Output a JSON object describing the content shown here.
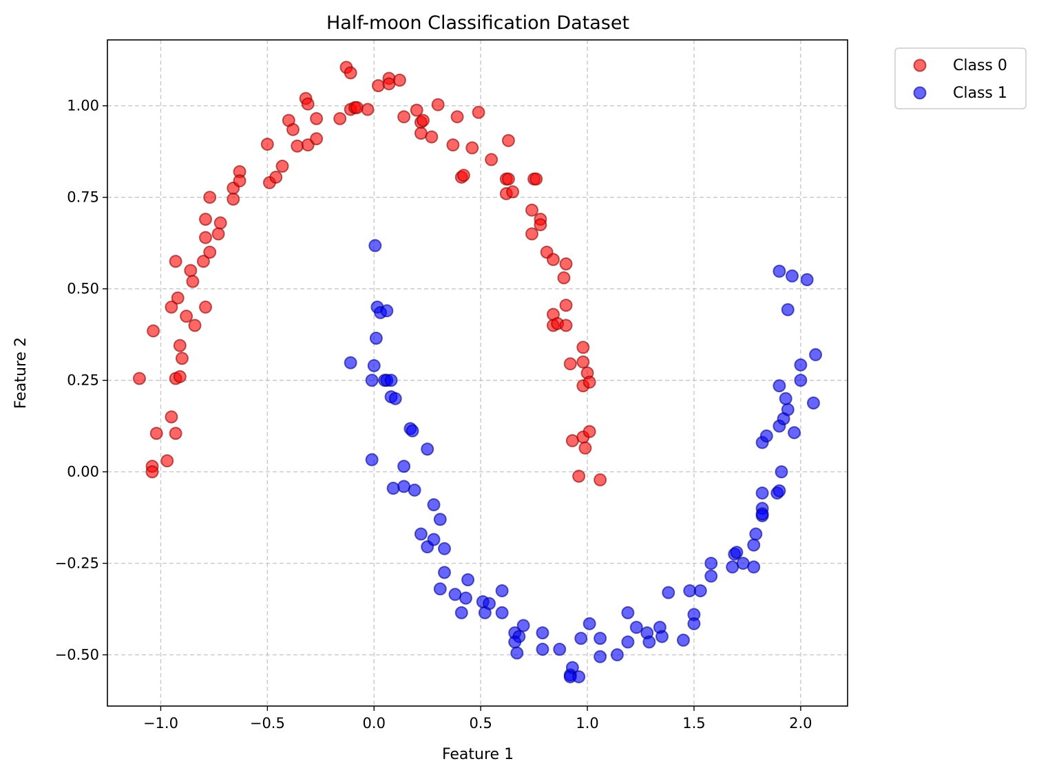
{
  "chart_data": {
    "type": "scatter",
    "title": "Half-moon Classification Dataset",
    "xlabel": "Feature 1",
    "ylabel": "Feature 2",
    "xlim": [
      -1.25,
      2.22
    ],
    "ylim": [
      -0.64,
      1.18
    ],
    "xticks": [
      -1.0,
      -0.5,
      0.0,
      0.5,
      1.0,
      1.5,
      2.0
    ],
    "xtick_labels": [
      "−1.0",
      "−0.5",
      "0.0",
      "0.5",
      "1.0",
      "1.5",
      "2.0"
    ],
    "yticks": [
      1.0,
      0.75,
      0.5,
      0.25,
      0.0,
      -0.25,
      -0.5
    ],
    "ytick_labels": [
      "1.00",
      "0.75",
      "0.50",
      "0.25",
      "0.00",
      "−0.25",
      "−0.50"
    ],
    "grid": true,
    "legend_position": "outside-top-right",
    "series": [
      {
        "name": "Class 0",
        "color": "#ff0000",
        "edge_color": "#8b0000",
        "points": [
          [
            -1.1,
            0.255
          ],
          [
            -1.04,
            0.015
          ],
          [
            -1.04,
            0.0
          ],
          [
            -1.035,
            0.385
          ],
          [
            -1.02,
            0.105
          ],
          [
            -0.97,
            0.03
          ],
          [
            -0.95,
            0.15
          ],
          [
            -0.95,
            0.45
          ],
          [
            -0.93,
            0.105
          ],
          [
            -0.93,
            0.575
          ],
          [
            -0.93,
            0.255
          ],
          [
            -0.92,
            0.475
          ],
          [
            -0.91,
            0.26
          ],
          [
            -0.91,
            0.345
          ],
          [
            -0.9,
            0.31
          ],
          [
            -0.88,
            0.425
          ],
          [
            -0.86,
            0.55
          ],
          [
            -0.85,
            0.52
          ],
          [
            -0.84,
            0.4
          ],
          [
            -0.8,
            0.575
          ],
          [
            -0.79,
            0.69
          ],
          [
            -0.79,
            0.64
          ],
          [
            -0.79,
            0.45
          ],
          [
            -0.77,
            0.6
          ],
          [
            -0.77,
            0.75
          ],
          [
            -0.73,
            0.65
          ],
          [
            -0.72,
            0.68
          ],
          [
            -0.66,
            0.775
          ],
          [
            -0.66,
            0.745
          ],
          [
            -0.63,
            0.82
          ],
          [
            -0.63,
            0.795
          ],
          [
            -0.5,
            0.895
          ],
          [
            -0.49,
            0.79
          ],
          [
            -0.46,
            0.805
          ],
          [
            -0.43,
            0.835
          ],
          [
            -0.4,
            0.96
          ],
          [
            -0.38,
            0.935
          ],
          [
            -0.36,
            0.89
          ],
          [
            -0.32,
            1.02
          ],
          [
            -0.31,
            0.893
          ],
          [
            -0.31,
            1.005
          ],
          [
            -0.27,
            0.965
          ],
          [
            -0.27,
            0.91
          ],
          [
            -0.16,
            0.965
          ],
          [
            -0.13,
            1.105
          ],
          [
            -0.11,
            1.09
          ],
          [
            -0.11,
            0.99
          ],
          [
            -0.09,
            0.995
          ],
          [
            -0.08,
            0.995
          ],
          [
            -0.03,
            0.99
          ],
          [
            0.02,
            1.055
          ],
          [
            0.07,
            1.075
          ],
          [
            0.07,
            1.06
          ],
          [
            0.12,
            1.07
          ],
          [
            0.14,
            0.97
          ],
          [
            0.2,
            0.988
          ],
          [
            0.22,
            0.955
          ],
          [
            0.22,
            0.925
          ],
          [
            0.23,
            0.96
          ],
          [
            0.27,
            0.915
          ],
          [
            0.3,
            1.003
          ],
          [
            0.37,
            0.893
          ],
          [
            0.39,
            0.97
          ],
          [
            0.41,
            0.805
          ],
          [
            0.42,
            0.81
          ],
          [
            0.46,
            0.885
          ],
          [
            0.49,
            0.982
          ],
          [
            0.55,
            0.853
          ],
          [
            0.62,
            0.8
          ],
          [
            0.62,
            0.76
          ],
          [
            0.63,
            0.8
          ],
          [
            0.63,
            0.905
          ],
          [
            0.65,
            0.765
          ],
          [
            0.75,
            0.8
          ],
          [
            0.76,
            0.8
          ],
          [
            0.74,
            0.715
          ],
          [
            0.74,
            0.65
          ],
          [
            0.78,
            0.69
          ],
          [
            0.78,
            0.675
          ],
          [
            0.81,
            0.6
          ],
          [
            0.84,
            0.58
          ],
          [
            0.84,
            0.43
          ],
          [
            0.84,
            0.4
          ],
          [
            0.86,
            0.405
          ],
          [
            0.89,
            0.53
          ],
          [
            0.9,
            0.568
          ],
          [
            0.9,
            0.455
          ],
          [
            0.9,
            0.4
          ],
          [
            0.92,
            0.295
          ],
          [
            0.93,
            0.085
          ],
          [
            0.98,
            0.34
          ],
          [
            0.98,
            0.3
          ],
          [
            0.98,
            0.235
          ],
          [
            0.98,
            0.095
          ],
          [
            0.99,
            0.065
          ],
          [
            1.0,
            0.27
          ],
          [
            1.01,
            0.245
          ],
          [
            1.01,
            0.11
          ],
          [
            0.96,
            -0.012
          ],
          [
            1.06,
            -0.022
          ]
        ]
      },
      {
        "name": "Class 1",
        "color": "#0000ff",
        "edge_color": "#00008b",
        "points": [
          [
            0.005,
            0.618
          ],
          [
            0.015,
            0.45
          ],
          [
            0.03,
            0.435
          ],
          [
            0.06,
            0.44
          ],
          [
            0.01,
            0.365
          ],
          [
            -0.11,
            0.298
          ],
          [
            0.0,
            0.29
          ],
          [
            -0.01,
            0.25
          ],
          [
            0.05,
            0.25
          ],
          [
            0.06,
            0.25
          ],
          [
            0.08,
            0.25
          ],
          [
            0.08,
            0.205
          ],
          [
            0.1,
            0.2
          ],
          [
            0.17,
            0.118
          ],
          [
            0.18,
            0.112
          ],
          [
            0.25,
            0.062
          ],
          [
            -0.01,
            0.033
          ],
          [
            0.14,
            0.015
          ],
          [
            0.09,
            -0.045
          ],
          [
            0.14,
            -0.04
          ],
          [
            0.19,
            -0.05
          ],
          [
            0.28,
            -0.09
          ],
          [
            0.31,
            -0.13
          ],
          [
            0.22,
            -0.17
          ],
          [
            0.25,
            -0.205
          ],
          [
            0.28,
            -0.185
          ],
          [
            0.33,
            -0.21
          ],
          [
            0.33,
            -0.275
          ],
          [
            0.31,
            -0.32
          ],
          [
            0.38,
            -0.335
          ],
          [
            0.44,
            -0.295
          ],
          [
            0.43,
            -0.345
          ],
          [
            0.51,
            -0.355
          ],
          [
            0.54,
            -0.36
          ],
          [
            0.41,
            -0.385
          ],
          [
            0.52,
            -0.385
          ],
          [
            0.6,
            -0.385
          ],
          [
            0.6,
            -0.325
          ],
          [
            0.66,
            -0.44
          ],
          [
            0.68,
            -0.45
          ],
          [
            0.7,
            -0.42
          ],
          [
            0.66,
            -0.465
          ],
          [
            0.67,
            -0.495
          ],
          [
            0.79,
            -0.44
          ],
          [
            0.79,
            -0.485
          ],
          [
            0.87,
            -0.485
          ],
          [
            0.92,
            -0.555
          ],
          [
            0.93,
            -0.535
          ],
          [
            0.92,
            -0.56
          ],
          [
            0.96,
            -0.56
          ],
          [
            0.97,
            -0.455
          ],
          [
            1.01,
            -0.415
          ],
          [
            1.06,
            -0.455
          ],
          [
            1.06,
            -0.505
          ],
          [
            1.14,
            -0.5
          ],
          [
            1.19,
            -0.385
          ],
          [
            1.19,
            -0.465
          ],
          [
            1.23,
            -0.425
          ],
          [
            1.28,
            -0.44
          ],
          [
            1.29,
            -0.465
          ],
          [
            1.34,
            -0.425
          ],
          [
            1.35,
            -0.45
          ],
          [
            1.38,
            -0.33
          ],
          [
            1.45,
            -0.46
          ],
          [
            1.48,
            -0.325
          ],
          [
            1.5,
            -0.39
          ],
          [
            1.5,
            -0.415
          ],
          [
            1.53,
            -0.325
          ],
          [
            1.58,
            -0.25
          ],
          [
            1.58,
            -0.285
          ],
          [
            1.69,
            -0.225
          ],
          [
            1.7,
            -0.22
          ],
          [
            1.68,
            -0.26
          ],
          [
            1.73,
            -0.25
          ],
          [
            1.78,
            -0.2
          ],
          [
            1.79,
            -0.17
          ],
          [
            1.78,
            -0.26
          ],
          [
            1.82,
            -0.1
          ],
          [
            1.82,
            -0.12
          ],
          [
            1.82,
            -0.115
          ],
          [
            1.82,
            -0.058
          ],
          [
            1.89,
            -0.058
          ],
          [
            1.9,
            -0.052
          ],
          [
            1.91,
            0.0
          ],
          [
            1.82,
            0.08
          ],
          [
            1.84,
            0.098
          ],
          [
            1.9,
            0.125
          ],
          [
            1.92,
            0.145
          ],
          [
            1.94,
            0.17
          ],
          [
            1.93,
            0.2
          ],
          [
            1.97,
            0.107
          ],
          [
            1.9,
            0.235
          ],
          [
            2.0,
            0.25
          ],
          [
            2.06,
            0.188
          ],
          [
            2.0,
            0.292
          ],
          [
            2.07,
            0.32
          ],
          [
            1.94,
            0.443
          ],
          [
            1.9,
            0.548
          ],
          [
            1.96,
            0.535
          ],
          [
            2.03,
            0.525
          ]
        ]
      }
    ]
  }
}
